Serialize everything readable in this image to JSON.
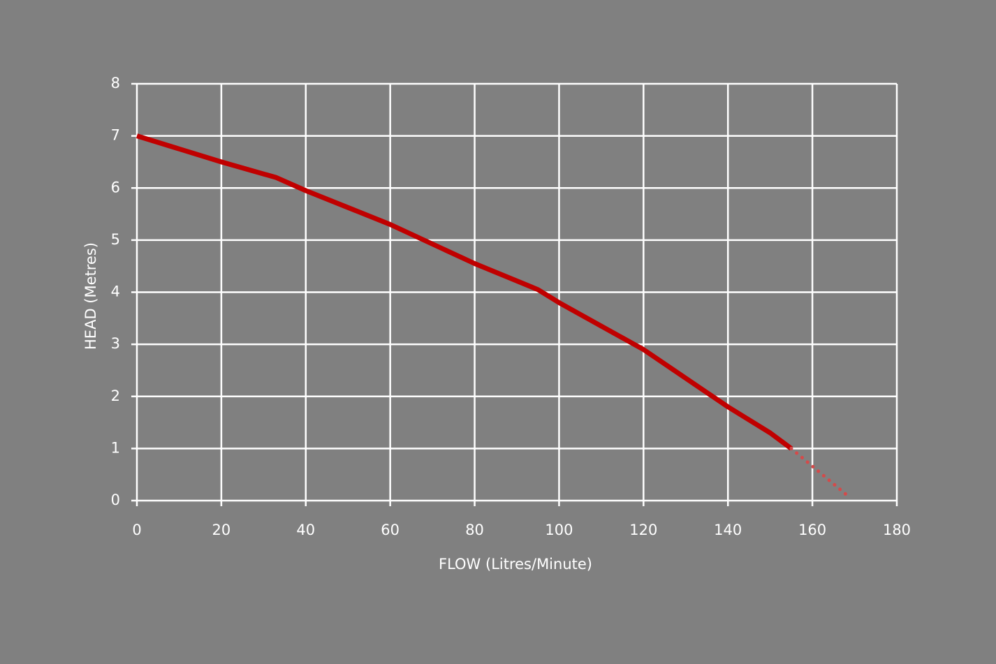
{
  "chart_data": {
    "type": "line",
    "x_label": "FLOW (Litres/Minute)",
    "y_label": "HEAD (Metres)",
    "xlim": [
      0,
      180
    ],
    "xticks": [
      0,
      20,
      40,
      60,
      80,
      100,
      120,
      140,
      160,
      180
    ],
    "ylim": [
      0,
      8
    ],
    "yticks": [
      0,
      1,
      2,
      3,
      4,
      5,
      6,
      7,
      8
    ],
    "grid": true,
    "series": [
      {
        "color": "#c00000",
        "style": "solid",
        "x": [
          0,
          20,
          33,
          40,
          60,
          80,
          95,
          100,
          120,
          140,
          150,
          155
        ],
        "values": [
          7,
          6.5,
          6.2,
          5.95,
          5.3,
          4.55,
          4.05,
          3.8,
          2.9,
          1.8,
          1.3,
          1.0
        ]
      },
      {
        "color": "#d44a4a",
        "style": "dotted",
        "x": [
          155,
          169
        ],
        "values": [
          1.0,
          0.05
        ]
      }
    ]
  }
}
